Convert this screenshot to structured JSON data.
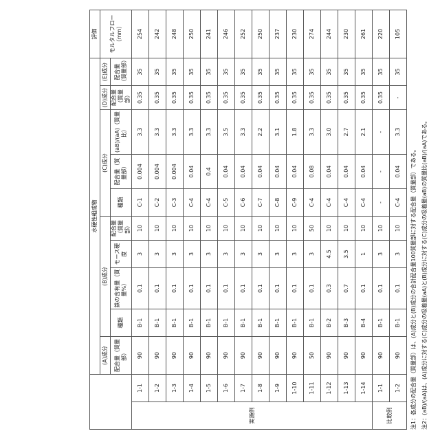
{
  "table": {
    "group_header": "水硬性組成物",
    "eval_header": "評価",
    "components": [
      "(A)成分",
      "(B)成分",
      "(C)成分",
      "(D)成分",
      "(E)成分"
    ],
    "eval_sub": "モルタルフロー（mm）",
    "subheaders": [
      "配合量（質量部）",
      "種類",
      "鉄の含有量（質量%）",
      "モース硬度",
      "配合量（質量部）",
      "種類",
      "配合量（質量部）",
      "(aB)/(aA)（質量比）",
      "配合量（質量部）",
      "配合量（質量部）"
    ],
    "groups": [
      {
        "label": "実施例",
        "rows": [
          [
            "1-1",
            "90",
            "B-1",
            "0.1",
            "3",
            "10",
            "C-1",
            "0.004",
            "3.3",
            "0.35",
            "35",
            "254"
          ],
          [
            "1-2",
            "90",
            "B-1",
            "0.1",
            "3",
            "10",
            "C-2",
            "0.004",
            "3.3",
            "0.35",
            "35",
            "242"
          ],
          [
            "1-3",
            "90",
            "B-1",
            "0.1",
            "3",
            "10",
            "C-3",
            "0.004",
            "3.3",
            "0.35",
            "35",
            "248"
          ],
          [
            "1-4",
            "90",
            "B-1",
            "0.1",
            "3",
            "10",
            "C-4",
            "0.04",
            "3.3",
            "0.35",
            "35",
            "250"
          ],
          [
            "1-5",
            "90",
            "B-1",
            "0.1",
            "3",
            "10",
            "C-4",
            "0.4",
            "3.3",
            "0.35",
            "35",
            "241"
          ],
          [
            "1-6",
            "90",
            "B-1",
            "0.1",
            "3",
            "10",
            "C-5",
            "0.04",
            "3.5",
            "0.35",
            "35",
            "246"
          ],
          [
            "1-7",
            "90",
            "B-1",
            "0.1",
            "3",
            "10",
            "C-6",
            "0.04",
            "3.3",
            "0.35",
            "35",
            "252"
          ],
          [
            "1-8",
            "90",
            "B-1",
            "0.1",
            "3",
            "10",
            "C-7",
            "0.04",
            "2.2",
            "0.35",
            "35",
            "250"
          ],
          [
            "1-9",
            "90",
            "B-1",
            "0.1",
            "3",
            "10",
            "C-8",
            "0.04",
            "3.1",
            "0.35",
            "35",
            "237"
          ],
          [
            "1-10",
            "90",
            "B-1",
            "0.1",
            "3",
            "10",
            "C-9",
            "0.04",
            "1.8",
            "0.35",
            "35",
            "230"
          ],
          [
            "1-11",
            "50",
            "B-1",
            "0.1",
            "3",
            "50",
            "C-4",
            "0.08",
            "3.3",
            "0.35",
            "35",
            "274"
          ],
          [
            "1-12",
            "90",
            "B-2",
            "0.3",
            "4.5",
            "10",
            "C-4",
            "0.04",
            "3.0",
            "0.35",
            "35",
            "244"
          ],
          [
            "1-13",
            "90",
            "B-3",
            "0.7",
            "3.5",
            "10",
            "C-4",
            "0.04",
            "2.7",
            "0.35",
            "35",
            "230"
          ],
          [
            "1-14",
            "90",
            "B-4",
            "0.1",
            "1",
            "10",
            "C-4",
            "0.04",
            "2.1",
            "0.35",
            "35",
            "261"
          ]
        ]
      },
      {
        "label": "比較例",
        "rows": [
          [
            "1-1",
            "90",
            "B-1",
            "0.1",
            "3",
            "10",
            "-",
            "-",
            "-",
            "0.35",
            "35",
            "220"
          ],
          [
            "1-2",
            "90",
            "B-1",
            "0.1",
            "3",
            "10",
            "C-4",
            "0.04",
            "3.3",
            "-",
            "35",
            "105"
          ]
        ]
      }
    ]
  },
  "notes": [
    "注1：各成分の配合量（質量部）は、(A)成分と(B)成分の合計配合量100質量部に対する配合量（質量部）である。",
    "注2：(aB)/(aA)は、(A)成分に対する(C)成分の吸着量(aA)と(B)成分に対する(C)成分の吸着量(aB)の質量比(aB)/(aA)である。"
  ]
}
